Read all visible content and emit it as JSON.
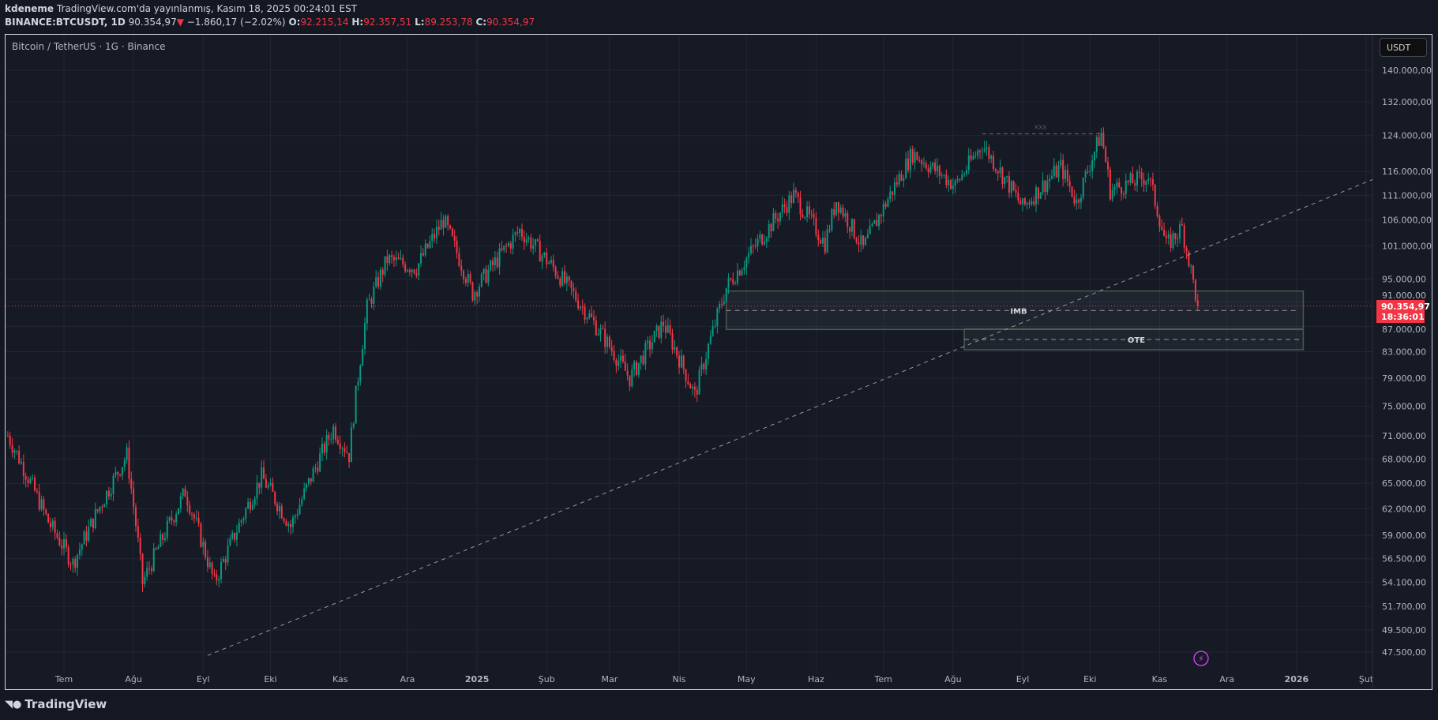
{
  "header": {
    "author": "kdeneme",
    "published": "TradingView.com'da yayınlanmış, Kasım 18, 2025 00:24:01 EST",
    "symbol": "BINANCE:BTCUSDT, 1D",
    "last": "90.354,97",
    "change": "−1.860,17 (−2.02%)",
    "o_label": "O:",
    "o": "92.215,14",
    "h_label": "H:",
    "h": "92.357,51",
    "l_label": "L:",
    "l": "89.253,78",
    "c_label": "C:",
    "c": "90.354,97"
  },
  "legend": "Bitcoin / TetherUS · 1G · Binance",
  "currency_button": "USDT",
  "last_price_label": {
    "price": "90.354,97",
    "countdown": "18:36:01"
  },
  "footer_logo": "TradingView",
  "colors": {
    "up": "#089981",
    "down": "#f23645",
    "background": "#161a25",
    "grid": "#232734"
  },
  "drawings": {
    "imb_label": "IMB",
    "ote_label": "OTE",
    "high_label": "xxx"
  },
  "chart_data": {
    "type": "candlestick",
    "scale": "log",
    "ylim": [
      47500,
      140000
    ],
    "y_ticks": [
      "140.000,00",
      "132.000,00",
      "124.000,00",
      "116.000,00",
      "111.000,00",
      "106.000,00",
      "101.000,00",
      "95.000,00",
      "91.000,00",
      "87.000,00",
      "83.000,00",
      "79.000,00",
      "75.000,00",
      "71.000,00",
      "68.000,00",
      "65.000,00",
      "62.000,00",
      "59.000,00",
      "56.500,00",
      "54.100,00",
      "51.700,00",
      "49.500,00",
      "47.500,00"
    ],
    "y_tick_values": [
      140000,
      132000,
      124000,
      116000,
      111000,
      106000,
      101000,
      95000,
      91000,
      87000,
      83000,
      79000,
      75000,
      71000,
      68000,
      65000,
      62000,
      59000,
      56500,
      54100,
      51700,
      49500,
      47500
    ],
    "x_ticks": [
      {
        "label": "Tem",
        "date": "2024-07-01"
      },
      {
        "label": "Ağu",
        "date": "2024-08-01"
      },
      {
        "label": "Eyl",
        "date": "2024-09-01"
      },
      {
        "label": "Eki",
        "date": "2024-10-01"
      },
      {
        "label": "Kas",
        "date": "2024-11-01"
      },
      {
        "label": "Ara",
        "date": "2024-12-01"
      },
      {
        "label": "2025",
        "date": "2025-01-01"
      },
      {
        "label": "Şub",
        "date": "2025-02-01"
      },
      {
        "label": "Mar",
        "date": "2025-03-01"
      },
      {
        "label": "Nis",
        "date": "2025-04-01"
      },
      {
        "label": "May",
        "date": "2025-05-01"
      },
      {
        "label": "Haz",
        "date": "2025-06-01"
      },
      {
        "label": "Tem",
        "date": "2025-07-01"
      },
      {
        "label": "Ağu",
        "date": "2025-08-01"
      },
      {
        "label": "Eyl",
        "date": "2025-09-01"
      },
      {
        "label": "Eki",
        "date": "2025-10-01"
      },
      {
        "label": "Kas",
        "date": "2025-11-01"
      },
      {
        "label": "Ara",
        "date": "2025-12-01"
      },
      {
        "label": "2026",
        "date": "2026-01-01"
      },
      {
        "label": "Şut",
        "date": "2026-02-01"
      }
    ],
    "x_range": [
      "2024-06-06",
      "2026-02-14"
    ],
    "close_keypoints": [
      [
        "2024-06-06",
        71000
      ],
      [
        "2024-06-24",
        60500
      ],
      [
        "2024-07-05",
        56000
      ],
      [
        "2024-07-29",
        68500
      ],
      [
        "2024-08-05",
        54000
      ],
      [
        "2024-08-24",
        64000
      ],
      [
        "2024-09-06",
        54000
      ],
      [
        "2024-09-27",
        65800
      ],
      [
        "2024-10-10",
        60000
      ],
      [
        "2024-10-29",
        72000
      ],
      [
        "2024-11-05",
        68500
      ],
      [
        "2024-11-13",
        90000
      ],
      [
        "2024-11-22",
        98500
      ],
      [
        "2024-12-05",
        97000
      ],
      [
        "2024-12-17",
        106000
      ],
      [
        "2024-12-30",
        92500
      ],
      [
        "2025-01-20",
        104000
      ],
      [
        "2025-02-03",
        97500
      ],
      [
        "2025-02-25",
        86000
      ],
      [
        "2025-03-10",
        79000
      ],
      [
        "2025-03-25",
        87500
      ],
      [
        "2025-04-08",
        76500
      ],
      [
        "2025-04-22",
        93500
      ],
      [
        "2025-05-22",
        111000
      ],
      [
        "2025-06-05",
        101500
      ],
      [
        "2025-06-10",
        110000
      ],
      [
        "2025-06-22",
        100500
      ],
      [
        "2025-07-14",
        120000
      ],
      [
        "2025-08-02",
        113000
      ],
      [
        "2025-08-14",
        122000
      ],
      [
        "2025-09-01",
        108500
      ],
      [
        "2025-09-18",
        117000
      ],
      [
        "2025-09-25",
        109500
      ],
      [
        "2025-10-06",
        124500
      ],
      [
        "2025-10-10",
        112000
      ],
      [
        "2025-10-27",
        115000
      ],
      [
        "2025-11-04",
        101000
      ],
      [
        "2025-11-11",
        104500
      ],
      [
        "2025-11-18",
        90354.97
      ]
    ],
    "last_close": 90354.97,
    "zones": [
      {
        "label": "IMB",
        "from": "2025-04-22",
        "to": "2026-01-04",
        "high": 92900,
        "low": 86500,
        "mid": 89600
      },
      {
        "label": "OTE",
        "from": "2025-08-06",
        "to": "2026-01-04",
        "high": 86600,
        "low": 83300,
        "mid": 84900
      }
    ],
    "trendline": [
      [
        "2024-09-03",
        47200
      ],
      [
        "2026-02-05",
        114500
      ]
    ],
    "high_line": {
      "label": "xxx",
      "from": "2025-08-14",
      "to": "2025-10-05",
      "price": 124400
    }
  }
}
